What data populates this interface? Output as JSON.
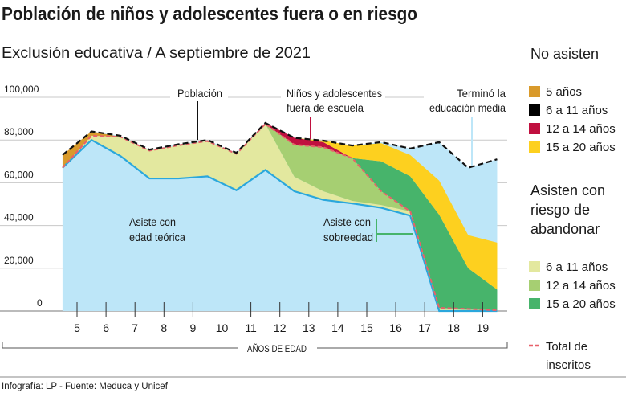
{
  "title": "Población de niños y adolescentes fuera o en riesgo",
  "subtitle": "Exclusión educativa / A septiembre de 2021",
  "footer": "Infografía: LP - Fuente: Meduca y Unicef",
  "annotations": {
    "poblacion": "Población",
    "fuera_1": "Niños y adolescentes",
    "fuera_2": "fuera  de escuela",
    "termino_1": "Terminó la",
    "termino_2": "educación media",
    "edad_1": "Asiste con",
    "edad_2": "edad teórica",
    "sobre_1": "Asiste con",
    "sobre_2": "sobreedad"
  },
  "legend": {
    "no_asisten_title": "No asisten",
    "no_asisten": [
      {
        "label": "5 años",
        "color": "#d99a2b"
      },
      {
        "label": "6 a 11 años",
        "color": "#000000"
      },
      {
        "label": "12 a 14 años",
        "color": "#c0103f"
      },
      {
        "label": "15 a 20 años",
        "color": "#fdd01f"
      }
    ],
    "riesgo_title_1": "Asisten con",
    "riesgo_title_2": "riesgo de",
    "riesgo_title_3": "abandonar",
    "riesgo": [
      {
        "label": "6 a 11 años",
        "color": "#e3e89f"
      },
      {
        "label": "12 a 14 años",
        "color": "#a6cf72"
      },
      {
        "label": "15 a 20 años",
        "color": "#47b46b"
      }
    ],
    "total_1": "Total de",
    "total_2": "inscritos",
    "total_color": "#e8616a"
  },
  "chart_data": {
    "type": "area",
    "stacked": true,
    "xlabel": "AÑOS DE EDAD",
    "x": [
      4.5,
      5.5,
      6.5,
      7.5,
      8.5,
      9.5,
      10.5,
      11.5,
      12.5,
      13.5,
      14.5,
      15.5,
      16.5,
      17.5,
      18.5,
      19.5
    ],
    "xticks": [
      "5",
      "6",
      "7",
      "8",
      "9",
      "10",
      "11",
      "12",
      "13",
      "14",
      "15",
      "16",
      "17",
      "18",
      "19"
    ],
    "yticks": [
      "0",
      "20,000",
      "40,000",
      "60,000",
      "80,000",
      "100,000"
    ],
    "ylim": [
      0,
      100000
    ],
    "grid": true,
    "unit": "thousands",
    "series": [
      {
        "key": "edad_teorica",
        "color": "#bde6f8",
        "values": [
          67,
          80,
          72.5,
          62,
          62,
          63,
          56.5,
          66,
          56,
          52,
          50.3,
          48.3,
          44.6,
          0,
          0,
          0
        ]
      },
      {
        "key": "riesgo_6_11",
        "color": "#e3e89f",
        "values": [
          0,
          2,
          9,
          13,
          15.5,
          16.5,
          17,
          21.5,
          6.8,
          4,
          1.2,
          1.3,
          2,
          1,
          0.5,
          0.2
        ]
      },
      {
        "key": "riesgo_12_14",
        "color": "#a6cf72",
        "values": [
          0,
          0,
          0,
          0,
          0,
          0,
          0,
          0,
          15,
          20.6,
          20,
          6.4,
          0,
          0.5,
          0.5,
          0.1
        ]
      },
      {
        "key": "riesgo_15_20",
        "color": "#47b46b",
        "values": [
          0,
          0,
          0,
          0,
          0,
          0,
          0,
          0,
          0,
          0,
          0,
          14,
          16.4,
          43.5,
          19,
          9.7
        ]
      },
      {
        "key": "no_5",
        "color": "#d99a2b",
        "values": [
          6,
          2,
          0,
          0,
          0,
          0,
          0,
          0,
          0,
          0,
          0,
          0,
          0,
          0,
          0,
          0
        ]
      },
      {
        "key": "no_6_11",
        "color": "#000000",
        "values": [
          0,
          0,
          0,
          0,
          0,
          0,
          0,
          0,
          0,
          0,
          0,
          0,
          0,
          0,
          0,
          0
        ]
      },
      {
        "key": "no_12_14",
        "color": "#c0103f",
        "values": [
          0,
          0,
          0,
          0,
          0,
          0,
          0,
          0.5,
          3.2,
          2.4,
          0,
          0,
          0,
          0,
          0,
          0
        ]
      },
      {
        "key": "no_15_20",
        "color": "#fdd01f",
        "values": [
          0,
          0,
          0,
          0,
          0,
          0,
          0,
          0,
          0,
          0.7,
          5.9,
          8.5,
          10,
          16,
          15.5,
          22
        ]
      }
    ],
    "lines": {
      "poblacion": {
        "color": "#111111",
        "values": [
          73,
          84,
          82,
          75.5,
          78,
          80,
          74,
          88,
          81,
          79.7,
          77.4,
          79,
          76,
          79,
          67,
          71
        ]
      },
      "edad_teorica": {
        "color": "#2aa7dc",
        "values": [
          67,
          80,
          72.5,
          62,
          62,
          63,
          56.5,
          66,
          56,
          52,
          50.3,
          48.3,
          44.6,
          0,
          0,
          0
        ]
      },
      "total_inscritos": {
        "color": "#e8616a",
        "values": [
          67,
          82,
          81.5,
          75,
          77.5,
          79.5,
          73.5,
          87.5,
          77.8,
          76.6,
          71.5,
          56,
          46.6,
          1.5,
          1,
          0.3
        ]
      }
    },
    "termino_color": "#bde6f8"
  }
}
